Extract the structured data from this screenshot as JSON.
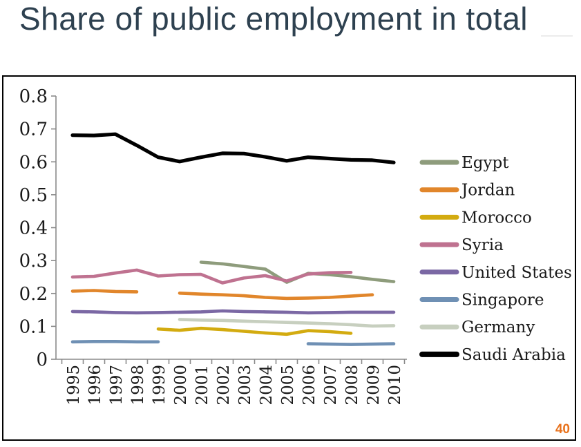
{
  "title": "Share of public employment in total",
  "page_number": "40",
  "colors": {
    "title_text": "#2E4150",
    "page_number": "#E8721C",
    "frame_border": "#000000",
    "axis": "#8a8a8a"
  },
  "chart_data": {
    "type": "line",
    "title": "",
    "xlabel": "",
    "ylabel": "",
    "grid": false,
    "legend_position": "right",
    "ylim": [
      0,
      0.8
    ],
    "yticks": [
      0,
      0.1,
      0.2,
      0.3,
      0.4,
      0.5,
      0.6,
      0.7,
      0.8
    ],
    "ytick_labels": [
      "0",
      "0.1",
      "0.2",
      "0.3",
      "0.4",
      "0.5",
      "0.6",
      "0.7",
      "0.8"
    ],
    "categories": [
      "1995",
      "1996",
      "1997",
      "1998",
      "1999",
      "2000",
      "2001",
      "2002",
      "2003",
      "2004",
      "2005",
      "2006",
      "2007",
      "2008",
      "2009",
      "2010"
    ],
    "series": [
      {
        "name": "Egypt",
        "color": "#8E9C7C",
        "values": [
          null,
          null,
          null,
          null,
          null,
          null,
          0.295,
          0.29,
          0.282,
          0.274,
          0.234,
          0.261,
          0.257,
          0.251,
          0.243,
          0.236
        ]
      },
      {
        "name": "Jordan",
        "color": "#E1862B",
        "values": [
          0.207,
          0.209,
          0.206,
          0.205,
          null,
          0.201,
          0.198,
          0.196,
          0.193,
          0.188,
          0.185,
          0.186,
          0.188,
          0.192,
          0.196,
          null
        ]
      },
      {
        "name": "Morocco",
        "color": "#D3AB10",
        "values": [
          null,
          null,
          null,
          null,
          0.092,
          0.088,
          0.094,
          0.09,
          0.085,
          0.08,
          0.076,
          0.087,
          0.084,
          0.079,
          null,
          null
        ]
      },
      {
        "name": "Syria",
        "color": "#BF7290",
        "values": [
          0.25,
          0.252,
          0.262,
          0.271,
          0.253,
          0.257,
          0.258,
          0.232,
          0.247,
          0.254,
          0.238,
          0.259,
          0.263,
          0.264,
          null,
          null
        ]
      },
      {
        "name": "United States",
        "color": "#7B68A4",
        "values": [
          0.145,
          0.144,
          0.142,
          0.141,
          0.142,
          0.143,
          0.144,
          0.147,
          0.145,
          0.144,
          0.143,
          0.141,
          0.142,
          0.143,
          0.143,
          0.143
        ]
      },
      {
        "name": "Singapore",
        "color": "#6F90B4",
        "values": [
          0.053,
          0.054,
          0.054,
          0.053,
          0.053,
          null,
          null,
          null,
          null,
          null,
          null,
          0.047,
          0.046,
          0.045,
          0.046,
          0.047
        ]
      },
      {
        "name": "Germany",
        "color": "#C7CFBF",
        "values": [
          null,
          null,
          null,
          null,
          null,
          0.121,
          0.119,
          0.118,
          0.116,
          0.114,
          0.112,
          0.11,
          0.108,
          0.105,
          0.101,
          0.102
        ]
      },
      {
        "name": "Saudi Arabia",
        "color": "#000000",
        "values": [
          0.681,
          0.68,
          0.684,
          0.65,
          0.614,
          0.601,
          0.614,
          0.626,
          0.625,
          0.615,
          0.603,
          0.614,
          0.61,
          0.606,
          0.605,
          0.598
        ]
      }
    ]
  }
}
